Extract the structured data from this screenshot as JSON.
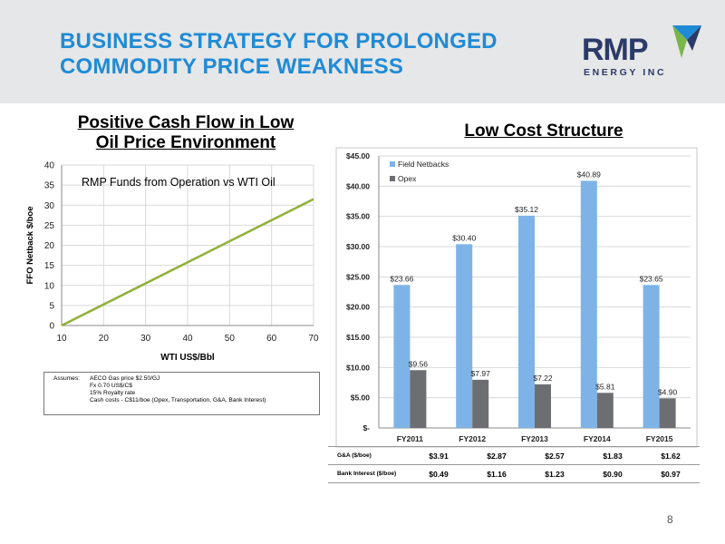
{
  "header": {
    "title_line1": "BUSINESS STRATEGY FOR PROLONGED",
    "title_line2": "COMMODITY PRICE WEAKNESS",
    "logo_text": "RMP",
    "logo_subtext": "ENERGY INC",
    "colors": {
      "title": "#1f8bd6",
      "logo": "#2b3a67",
      "logo_mark_green": "#7ab648",
      "logo_mark_blue": "#1f8bd6"
    }
  },
  "left": {
    "heading_line1": "Positive Cash Flow in Low",
    "heading_line2": "Oil Price Environment",
    "assumptions": {
      "label": "Assumes:",
      "lines": [
        "AECO Gas price $2.50/GJ",
        "Fx  0.70 US$/C$",
        "15% Royalty rate",
        "Cash costs - C$11/boe (Opex, Transportation, G&A, Bank Interest)"
      ]
    }
  },
  "right": {
    "heading": "Low Cost Structure",
    "table": {
      "rows": [
        {
          "label": "G&A ($/boe)",
          "values": [
            "$3.91",
            "$2.87",
            "$2.57",
            "$1.83",
            "$1.62"
          ]
        },
        {
          "label": "Bank Interest ($/boe)",
          "values": [
            "$0.49",
            "$1.16",
            "$1.23",
            "$0.90",
            "$0.97"
          ]
        }
      ]
    }
  },
  "page_number": "8",
  "chart_data": [
    {
      "type": "line",
      "title": "RMP Funds from Operation vs WTI Oil",
      "xlabel": "WTI US$/Bbl",
      "ylabel": "FFO Netback $/boe",
      "xlim": [
        10,
        70
      ],
      "ylim": [
        0,
        40
      ],
      "x_ticks": [
        10,
        20,
        30,
        40,
        50,
        60,
        70
      ],
      "y_ticks": [
        0,
        5,
        10,
        15,
        20,
        25,
        30,
        35,
        40
      ],
      "grid": true,
      "series": [
        {
          "x": [
            10,
            70
          ],
          "y": [
            0,
            31.5
          ],
          "color": "#8fb03a"
        }
      ]
    },
    {
      "type": "bar",
      "categories": [
        "FY2011",
        "FY2012",
        "FY2013",
        "FY2014",
        "FY2015"
      ],
      "ylim": [
        0,
        45
      ],
      "y_ticks": [
        0,
        5,
        10,
        15,
        20,
        25,
        30,
        35,
        40,
        45
      ],
      "y_tick_labels": [
        "$-",
        "$5.00",
        "$10.00",
        "$15.00",
        "$20.00",
        "$25.00",
        "$30.00",
        "$35.00",
        "$40.00",
        "$45.00"
      ],
      "grid": true,
      "legend": "top-left",
      "series": [
        {
          "name": "Field Netbacks",
          "values": [
            23.66,
            30.4,
            35.12,
            40.89,
            23.65
          ],
          "labels": [
            "$23.66",
            "$30.40",
            "$35.12",
            "$40.89",
            "$23.65"
          ],
          "color": "#7eb3e7"
        },
        {
          "name": "Opex",
          "values": [
            9.56,
            7.97,
            7.22,
            5.81,
            4.9
          ],
          "labels": [
            "$9.56",
            "$7.97",
            "$7.22",
            "$5.81",
            "$4.90"
          ],
          "color": "#6d6e71"
        }
      ]
    }
  ]
}
